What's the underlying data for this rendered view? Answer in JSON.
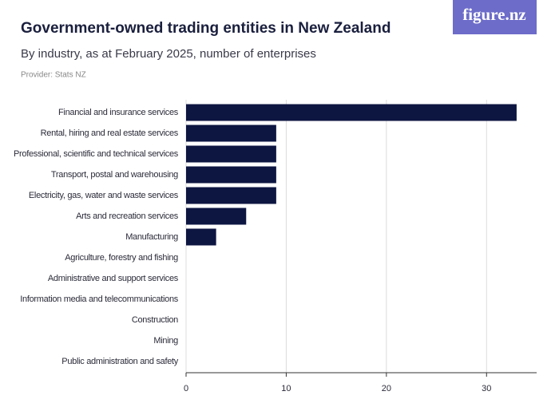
{
  "chart_data": {
    "type": "barh",
    "title": "Government-owned trading entities in New Zealand",
    "subtitle": "By industry, as at February 2025, number of enterprises",
    "provider": "Provider: Stats NZ",
    "logo": "figure.nz",
    "categories": [
      "Financial and insurance services",
      "Rental, hiring and real estate services",
      "Professional, scientific and technical services",
      "Transport, postal and warehousing",
      "Electricity, gas, water and waste services",
      "Arts and recreation services",
      "Manufacturing",
      "Agriculture, forestry and fishing",
      "Administrative and support services",
      "Information media and telecommunications",
      "Construction",
      "Mining",
      "Public administration and safety"
    ],
    "values": [
      33,
      9,
      9,
      9,
      9,
      6,
      3,
      0,
      0,
      0,
      0,
      0,
      0
    ],
    "color": "#0d1641",
    "xlim": [
      0,
      35
    ],
    "xticks": [
      0,
      10,
      20,
      30
    ],
    "grid": true
  }
}
